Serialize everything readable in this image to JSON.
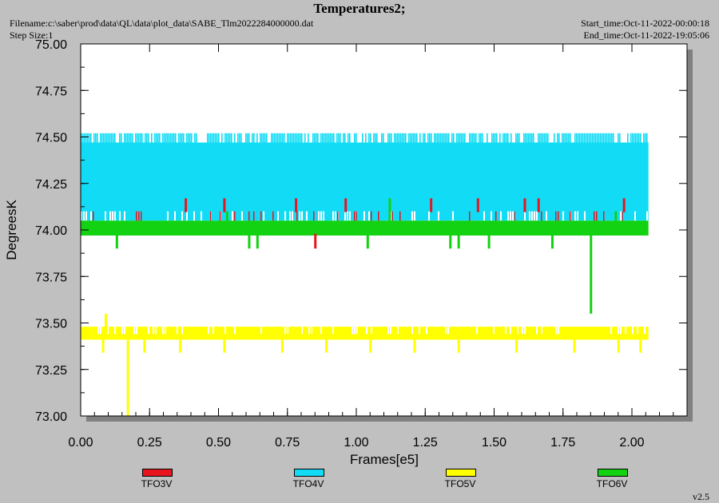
{
  "header": {
    "title": "Temperatures2;",
    "filename": "Filename:c:\\saber\\prod\\data\\QL\\data\\plot_data\\SABE_Tlm2022284000000.dat",
    "step_size": "Step Size:1",
    "start_time": "Start_time:Oct-11-2022-00:00:18",
    "end_time": "End_time:Oct-11-2022-19:05:06"
  },
  "version": "v2.5",
  "colors": {
    "TFO3V": "#e8141e",
    "TFO4V": "#12dcf5",
    "TFO5V": "#ffff00",
    "TFO6V": "#12d212"
  },
  "chart_data": {
    "type": "line",
    "title": "Temperatures2;",
    "xlabel": "Frames[e5]",
    "ylabel": "DegreesK",
    "xlim": [
      0.0,
      2.2
    ],
    "ylim": [
      73.0,
      75.0
    ],
    "x_ticks": [
      "0.00",
      "0.25",
      "0.50",
      "0.75",
      "1.00",
      "1.25",
      "1.50",
      "1.75",
      "2.00"
    ],
    "y_ticks": [
      "73.00",
      "73.25",
      "73.50",
      "73.75",
      "74.00",
      "74.25",
      "74.50",
      "74.75",
      "75.00"
    ],
    "grid": false,
    "legend_position": "bottom",
    "x_max_data": 2.06,
    "series": [
      {
        "name": "TFO3V",
        "base_band": [
          73.98,
          74.1
        ],
        "spikes_up": [
          [
            0.38,
            74.17
          ],
          [
            0.52,
            74.17
          ],
          [
            0.78,
            74.17
          ],
          [
            0.96,
            74.17
          ],
          [
            1.27,
            74.17
          ],
          [
            1.44,
            74.17
          ],
          [
            1.61,
            74.17
          ],
          [
            1.66,
            74.17
          ],
          [
            1.97,
            74.17
          ]
        ],
        "spikes_down": [
          [
            0.85,
            73.9
          ]
        ]
      },
      {
        "name": "TFO4V",
        "base_band": [
          74.05,
          74.47
        ],
        "upper_band_top": 74.52,
        "spikes_up": [],
        "spikes_down": [
          [
            0.57,
            74.38
          ],
          [
            1.2,
            74.38
          ]
        ]
      },
      {
        "name": "TFO5V",
        "base_band": [
          73.41,
          73.48
        ],
        "spikes_up": [
          [
            0.09,
            73.55
          ]
        ],
        "spikes_down": [
          [
            0.17,
            73.0
          ],
          [
            0.08,
            73.34
          ],
          [
            0.23,
            73.34
          ],
          [
            0.36,
            73.34
          ],
          [
            0.52,
            73.34
          ],
          [
            0.73,
            73.34
          ],
          [
            0.89,
            73.34
          ],
          [
            1.05,
            73.34
          ],
          [
            1.21,
            73.34
          ],
          [
            1.37,
            73.34
          ],
          [
            1.58,
            73.34
          ],
          [
            1.79,
            73.34
          ],
          [
            1.95,
            73.34
          ],
          [
            2.03,
            73.34
          ]
        ]
      },
      {
        "name": "TFO6V",
        "base_band": [
          73.97,
          74.05
        ],
        "spikes_up": [
          [
            1.12,
            74.17
          ],
          [
            0.53,
            74.1
          ],
          [
            1.94,
            74.1
          ]
        ],
        "spikes_down": [
          [
            0.13,
            73.9
          ],
          [
            0.61,
            73.9
          ],
          [
            0.64,
            73.9
          ],
          [
            1.04,
            73.9
          ],
          [
            1.34,
            73.9
          ],
          [
            1.37,
            73.9
          ],
          [
            1.48,
            73.9
          ],
          [
            1.71,
            73.9
          ],
          [
            1.85,
            73.55
          ]
        ]
      }
    ]
  }
}
